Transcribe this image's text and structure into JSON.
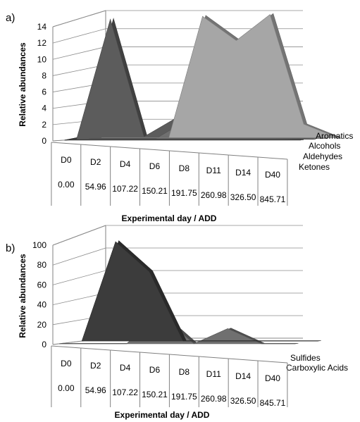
{
  "chart_data": [
    {
      "panel_label": "a)",
      "type": "area",
      "view": "3d-stacked-depth",
      "categories": [
        "D0",
        "D2",
        "D4",
        "D6",
        "D8",
        "D11",
        "D14",
        "D40"
      ],
      "add_values": [
        "0.00",
        "54.96",
        "107.22",
        "150.21",
        "191.75",
        "260.98",
        "326.50",
        "845.71"
      ],
      "ylabel": "Relative abundances",
      "xlabel": "Experimental day / ADD",
      "ylim": [
        0,
        14
      ],
      "yticks": [
        "0",
        "2",
        "4",
        "6",
        "8",
        "10",
        "12",
        "14"
      ],
      "grid": true,
      "series": [
        {
          "name": "Aromatics",
          "values": [
            0,
            0,
            0,
            13.5,
            10.8,
            13.7,
            1.5,
            0
          ],
          "color": "#a6a6a6"
        },
        {
          "name": "Alcohols",
          "values": [
            0,
            0,
            0,
            2.3,
            2.2,
            2.3,
            0.8,
            0.2
          ],
          "color": "#707070"
        },
        {
          "name": "Aldehydes",
          "values": [
            0,
            14,
            0.3,
            2.6,
            0.9,
            0.3,
            0.1,
            0
          ],
          "color": "#5c5c5c"
        },
        {
          "name": "Ketones",
          "values": [
            0,
            0.8,
            0.2,
            0.6,
            1.8,
            3.2,
            0.9,
            0.6
          ],
          "color": "#3c3c3c"
        }
      ]
    },
    {
      "panel_label": "b)",
      "type": "area",
      "view": "3d-stacked-depth",
      "categories": [
        "D0",
        "D2",
        "D4",
        "D6",
        "D8",
        "D11",
        "D14",
        "D40"
      ],
      "add_values": [
        "0.00",
        "54.96",
        "107.22",
        "150.21",
        "191.75",
        "260.98",
        "326.50",
        "845.71"
      ],
      "ylabel": "Relative abundances",
      "xlabel": "Experimental day / ADD",
      "ylim": [
        0,
        100
      ],
      "yticks": [
        "0",
        "20",
        "40",
        "60",
        "80",
        "100"
      ],
      "grid": true,
      "series": [
        {
          "name": "Sulfides",
          "values": [
            0,
            93,
            65,
            0,
            0,
            0,
            0,
            0
          ],
          "color": "#3c3c3c"
        },
        {
          "name": "Carboxylic Acids",
          "values": [
            0,
            0,
            0,
            29,
            0,
            15,
            0,
            0
          ],
          "color": "#707070"
        }
      ]
    }
  ]
}
